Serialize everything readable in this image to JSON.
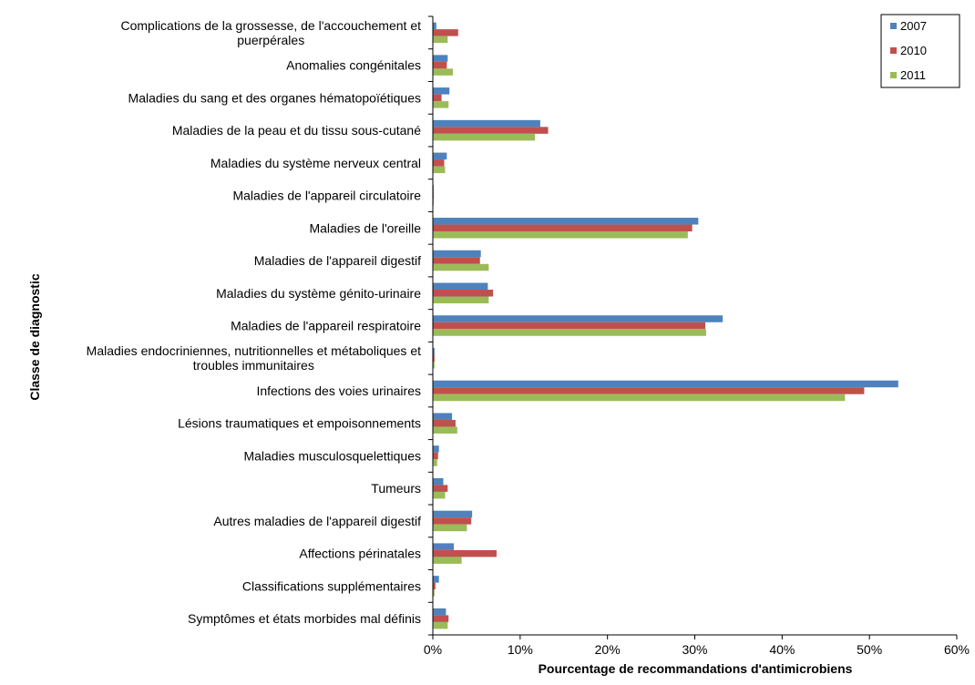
{
  "chart_data": {
    "type": "bar",
    "orientation": "horizontal",
    "xlabel": "Pourcentage de recommandations d'antimicrobiens",
    "ylabel": "Classe de diagnostic",
    "xlim": [
      0,
      60
    ],
    "xticks": [
      "0%",
      "10%",
      "20%",
      "30%",
      "40%",
      "50%",
      "60%"
    ],
    "legend_position": "top-right",
    "categories": [
      [
        "Complications de la grossesse, de l'accouchement et",
        "puerpérales"
      ],
      [
        "Anomalies congénitales"
      ],
      [
        "Maladies du sang et des organes hématopoïétiques"
      ],
      [
        "Maladies de la peau et du tissu sous-cutané"
      ],
      [
        "Maladies du système nerveux central"
      ],
      [
        "Maladies de l'appareil circulatoire"
      ],
      [
        "Maladies de l'oreille"
      ],
      [
        "Maladies de l'appareil digestif"
      ],
      [
        "Maladies du système génito-urinaire"
      ],
      [
        "Maladies de l'appareil respiratoire"
      ],
      [
        "Maladies endocriniennes, nutritionnelles et métaboliques et",
        "troubles immunitaires"
      ],
      [
        "Infections des voies urinaires"
      ],
      [
        "Lésions traumatiques et empoisonnements"
      ],
      [
        "Maladies musculosquelettiques"
      ],
      [
        "Tumeurs"
      ],
      [
        "Autres maladies de l'appareil digestif"
      ],
      [
        "Affections périnatales"
      ],
      [
        "Classifications supplémentaires"
      ],
      [
        "Symptômes et états morbides mal définis"
      ]
    ],
    "series": [
      {
        "name": "2007",
        "color": "#4F81BD",
        "values": [
          0.4,
          1.7,
          1.9,
          12.3,
          1.6,
          0.1,
          30.4,
          5.5,
          6.3,
          33.2,
          0.2,
          53.3,
          2.2,
          0.7,
          1.2,
          4.5,
          2.4,
          0.7,
          1.5
        ]
      },
      {
        "name": "2010",
        "color": "#C0504D",
        "values": [
          2.9,
          1.6,
          1.0,
          13.2,
          1.3,
          0.1,
          29.7,
          5.4,
          6.9,
          31.2,
          0.2,
          49.4,
          2.6,
          0.6,
          1.7,
          4.4,
          7.3,
          0.3,
          1.8
        ]
      },
      {
        "name": "2011",
        "color": "#9BBB59",
        "values": [
          1.7,
          2.3,
          1.8,
          11.7,
          1.4,
          0.1,
          29.2,
          6.4,
          6.4,
          31.3,
          0.2,
          47.2,
          2.8,
          0.5,
          1.4,
          3.9,
          3.3,
          0.2,
          1.7
        ]
      }
    ]
  }
}
